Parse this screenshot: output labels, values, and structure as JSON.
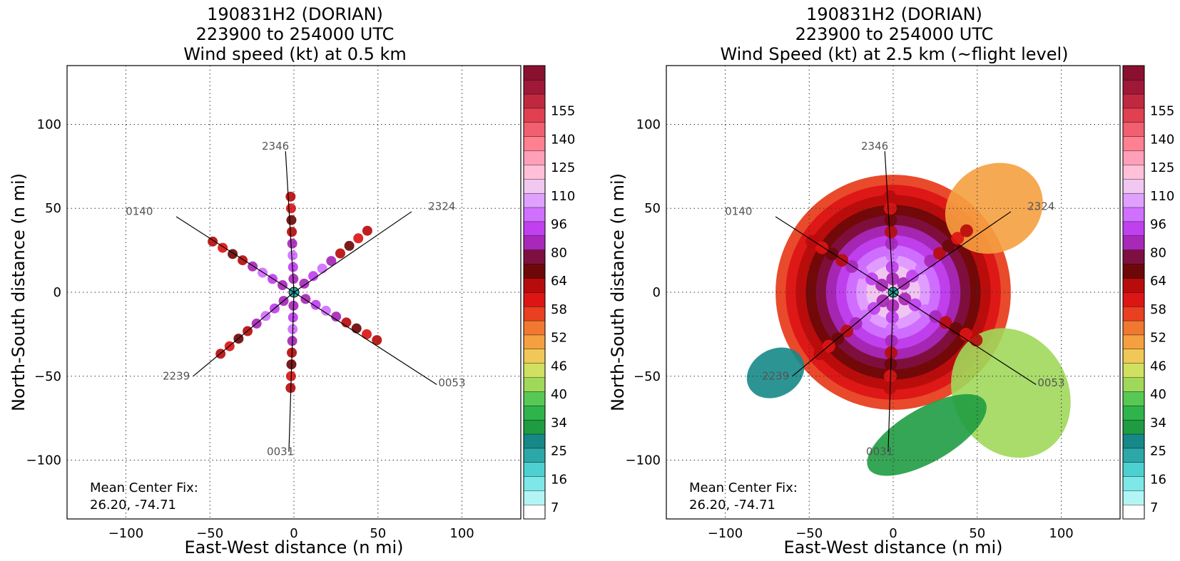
{
  "chart_data": [
    {
      "type": "heatmap",
      "title_lines": [
        "190831H2 (DORIAN)",
        "223900 to 254000 UTC",
        "Wind speed (kt) at 0.5 km"
      ],
      "xlabel": "East-West distance (n mi)",
      "ylabel": "North-South distance (n mi)",
      "xlim": [
        -135,
        135
      ],
      "ylim": [
        -135,
        135
      ],
      "xticks": [
        -100,
        -50,
        0,
        50,
        100
      ],
      "yticks": [
        -100,
        -50,
        0,
        50,
        100
      ],
      "grid": true,
      "colorbar": {
        "tick_labels": [
          "7",
          "16",
          "25",
          "34",
          "40",
          "46",
          "52",
          "58",
          "64",
          "80",
          "96",
          "110",
          "125",
          "140",
          "155"
        ],
        "colors": [
          "#ffffff",
          "#b3f5f5",
          "#7ee8e8",
          "#4fd0d0",
          "#2ca8a8",
          "#168888",
          "#1f9c42",
          "#2fb44c",
          "#58c854",
          "#a0d85a",
          "#d0e060",
          "#f0c858",
          "#f5a040",
          "#f07830",
          "#e84020",
          "#dd1515",
          "#b80c0c",
          "#6e0808",
          "#7e1040",
          "#a828b8",
          "#c040f0",
          "#d070ff",
          "#e0a0ff",
          "#f0c8f0",
          "#ffc0d8",
          "#ffa0b8",
          "#ff8090",
          "#f06070",
          "#e04050",
          "#c02840",
          "#a01838",
          "#8a1030"
        ]
      },
      "track_labels": [
        "2346",
        "0140",
        "2324",
        "2239",
        "0053",
        "0031"
      ],
      "annotation_lines": [
        "Mean Center Fix:",
        "26.20, -74.71"
      ]
    },
    {
      "type": "heatmap",
      "title_lines": [
        "190831H2 (DORIAN)",
        "223900 to 254000 UTC",
        "Wind Speed (kt) at 2.5 km (~flight level)"
      ],
      "xlabel": "East-West distance (n mi)",
      "ylabel": "North-South distance (n mi)",
      "xlim": [
        -135,
        135
      ],
      "ylim": [
        -135,
        135
      ],
      "xticks": [
        -100,
        -50,
        0,
        50,
        100
      ],
      "yticks": [
        -100,
        -50,
        0,
        50,
        100
      ],
      "grid": true,
      "colorbar": {
        "tick_labels": [
          "7",
          "16",
          "25",
          "34",
          "40",
          "46",
          "52",
          "58",
          "64",
          "80",
          "96",
          "110",
          "125",
          "140",
          "155"
        ],
        "colors": [
          "#ffffff",
          "#b3f5f5",
          "#7ee8e8",
          "#4fd0d0",
          "#2ca8a8",
          "#168888",
          "#1f9c42",
          "#2fb44c",
          "#58c854",
          "#a0d85a",
          "#d0e060",
          "#f0c858",
          "#f5a040",
          "#f07830",
          "#e84020",
          "#dd1515",
          "#b80c0c",
          "#6e0808",
          "#7e1040",
          "#a828b8",
          "#c040f0",
          "#d070ff",
          "#e0a0ff",
          "#f0c8f0",
          "#ffc0d8",
          "#ffa0b8",
          "#ff8090",
          "#f06070",
          "#e04050",
          "#c02840",
          "#a01838",
          "#8a1030"
        ]
      },
      "track_labels": [
        "2346",
        "0140",
        "2324",
        "2239",
        "0053",
        "0031"
      ],
      "annotation_lines": [
        "Mean Center Fix:",
        "26.20, -74.71"
      ]
    }
  ]
}
